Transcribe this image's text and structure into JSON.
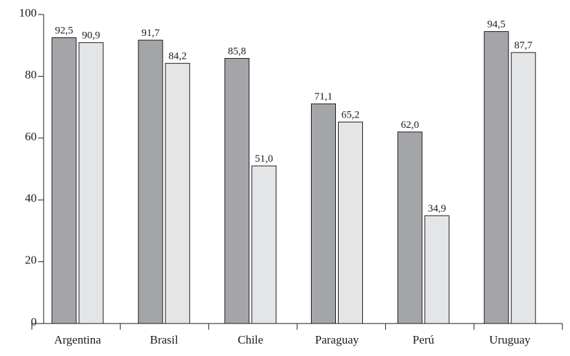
{
  "chart_data": {
    "type": "bar",
    "title": "",
    "xlabel": "",
    "ylabel": "",
    "categories": [
      "Argentina",
      "Brasil",
      "Chile",
      "Paraguay",
      "Perú",
      "Uruguay"
    ],
    "series": [
      {
        "values": [
          92.5,
          91.7,
          85.8,
          71.1,
          62.0,
          94.5
        ],
        "labels": [
          "92,5",
          "91,7",
          "85,8",
          "71,1",
          "62,0",
          "94,5"
        ],
        "color": "#a4a5a9"
      },
      {
        "values": [
          90.9,
          84.2,
          51.0,
          65.2,
          34.9,
          87.7
        ],
        "labels": [
          "90,9",
          "84,2",
          "51,0",
          "65,2",
          "34,9",
          "87,7"
        ],
        "color": "#e4e5e7"
      }
    ],
    "ylim": [
      0,
      100
    ],
    "yticks": [
      0,
      20,
      40,
      60,
      80,
      100
    ],
    "ytick_labels": [
      "0",
      "20",
      "40",
      "60",
      "80",
      "100"
    ],
    "grid": false,
    "legend": "none"
  }
}
